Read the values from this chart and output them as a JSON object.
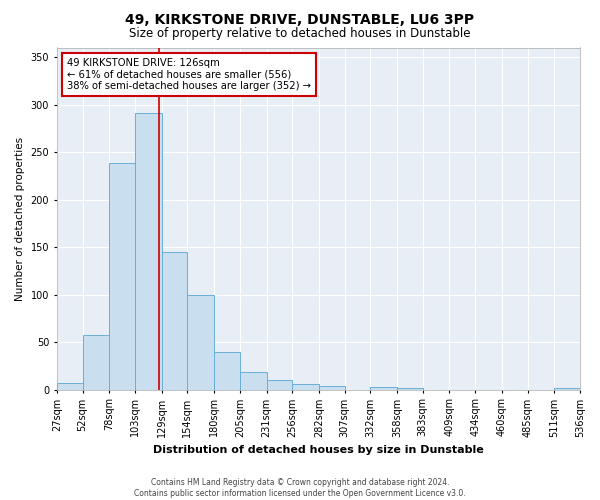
{
  "title1": "49, KIRKSTONE DRIVE, DUNSTABLE, LU6 3PP",
  "title2": "Size of property relative to detached houses in Dunstable",
  "xlabel": "Distribution of detached houses by size in Dunstable",
  "ylabel": "Number of detached properties",
  "bar_color": "#c9dff0",
  "bar_edge_color": "#6aaed6",
  "plot_bg_color": "#e8eef5",
  "fig_bg_color": "#ffffff",
  "grid_color": "#ffffff",
  "annotation_line_color": "#cc0000",
  "annotation_box_color": "#cc0000",
  "annotation_line1": "49 KIRKSTONE DRIVE: 126sqm",
  "annotation_line2": "← 61% of detached houses are smaller (556)",
  "annotation_line3": "38% of semi-detached houses are larger (352) →",
  "property_sqm": 126,
  "bin_edges": [
    27,
    52,
    78,
    103,
    129,
    154,
    180,
    205,
    231,
    256,
    282,
    307,
    332,
    358,
    383,
    409,
    434,
    460,
    485,
    511,
    536
  ],
  "bin_labels": [
    "27sqm",
    "52sqm",
    "78sqm",
    "103sqm",
    "129sqm",
    "154sqm",
    "180sqm",
    "205sqm",
    "231sqm",
    "256sqm",
    "282sqm",
    "307sqm",
    "332sqm",
    "358sqm",
    "383sqm",
    "409sqm",
    "434sqm",
    "460sqm",
    "485sqm",
    "511sqm",
    "536sqm"
  ],
  "counts": [
    7,
    57,
    239,
    291,
    145,
    100,
    40,
    19,
    10,
    6,
    4,
    0,
    3,
    2,
    0,
    0,
    0,
    0,
    0,
    2
  ],
  "ylim": [
    0,
    360
  ],
  "yticks": [
    0,
    50,
    100,
    150,
    200,
    250,
    300,
    350
  ],
  "footnote1": "Contains HM Land Registry data © Crown copyright and database right 2024.",
  "footnote2": "Contains public sector information licensed under the Open Government Licence v3.0."
}
